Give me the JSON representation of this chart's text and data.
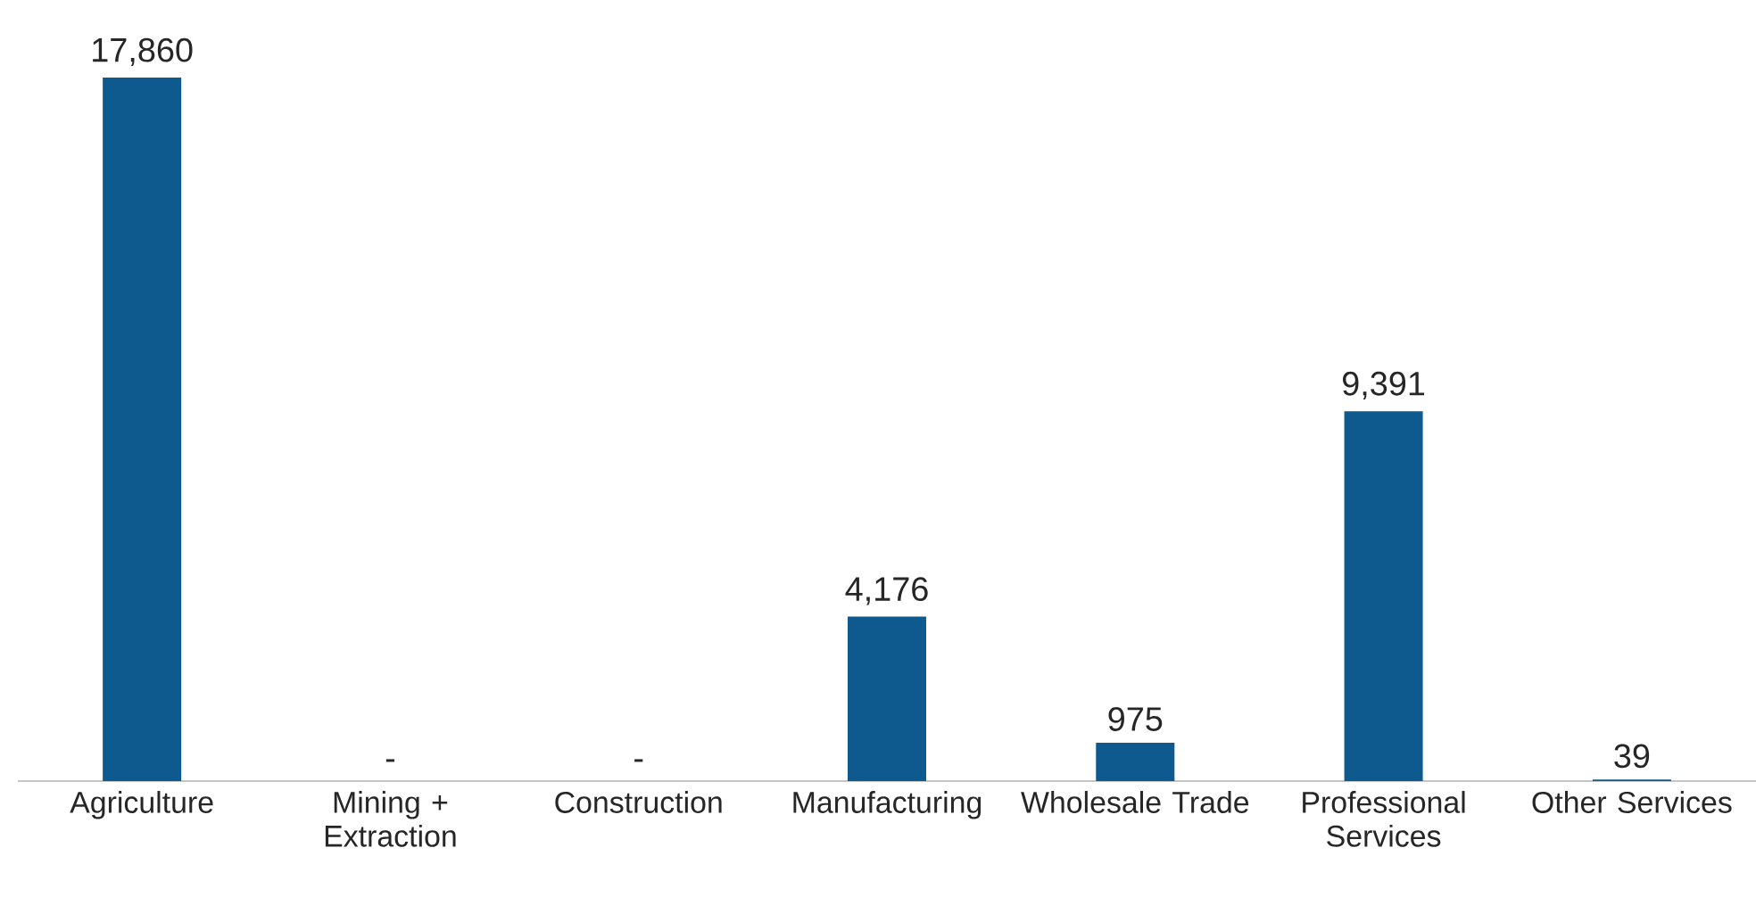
{
  "chart_data": {
    "type": "bar",
    "categories": [
      "Agriculture",
      "Mining + Extraction",
      "Construction",
      "Manufacturing",
      "Wholesale Trade",
      "Professional Services",
      "Other Services"
    ],
    "values": [
      17860,
      0,
      0,
      4176,
      975,
      9391,
      39
    ],
    "value_labels": [
      "17,860",
      "-",
      "-",
      "4,176",
      "975",
      "9,391",
      "39"
    ],
    "color": "#0e5a8f"
  }
}
